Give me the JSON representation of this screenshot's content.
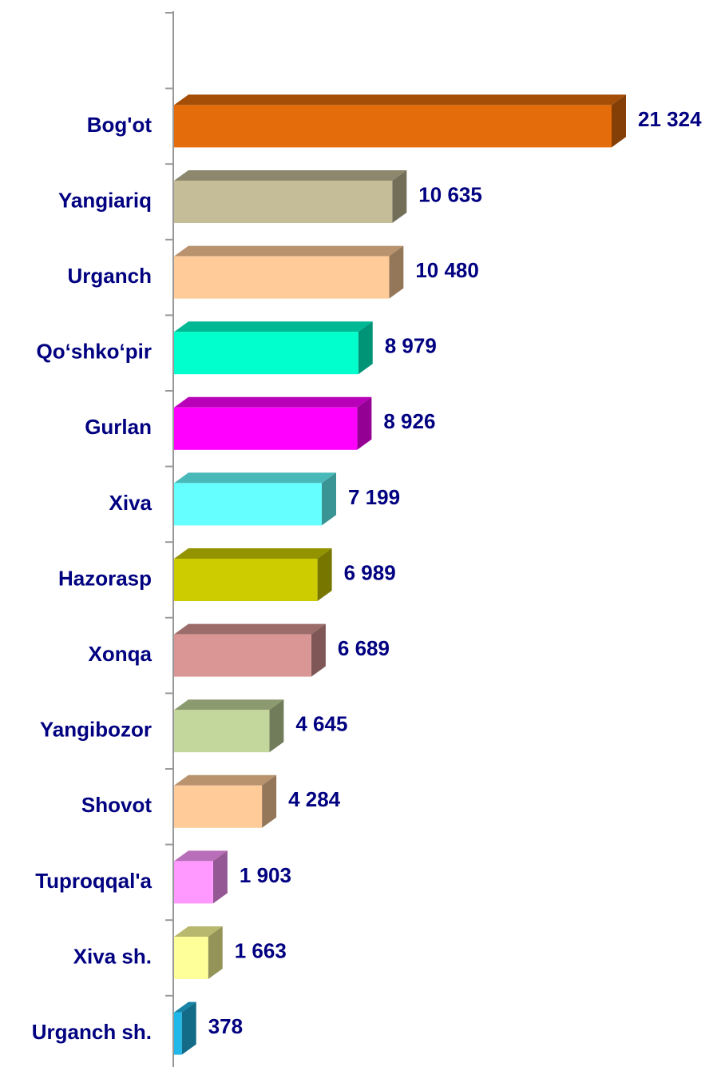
{
  "chart_data": {
    "type": "bar3d-horizontal",
    "categories": [
      "Bog'ot",
      "Yangiariq",
      "Urganch",
      "Qo‘shko‘pir",
      "Gurlan",
      "Xiva",
      "Hazorasp",
      "Xonqa",
      "Yangibozor",
      "Shovot",
      "Tuproqqal'a",
      "Xiva sh.",
      "Urganch sh."
    ],
    "values": [
      21324,
      10635,
      10480,
      8979,
      8926,
      7199,
      6989,
      6689,
      4645,
      4284,
      1903,
      1663,
      378
    ],
    "value_labels": [
      "21 324",
      "10 635",
      "10 480",
      "8 979",
      "8 926",
      "7 199",
      "6 989",
      "6 689",
      "4 645",
      "4 284",
      "1 903",
      "1 663",
      "378"
    ],
    "colors": [
      "#e46c0a",
      "#c4bd97",
      "#ffcc99",
      "#00ffcc",
      "#ff00ff",
      "#66ffff",
      "#cccc00",
      "#d99694",
      "#c3d69b",
      "#ffcc99",
      "#ff99ff",
      "#ffff99",
      "#1fb8e8"
    ]
  }
}
